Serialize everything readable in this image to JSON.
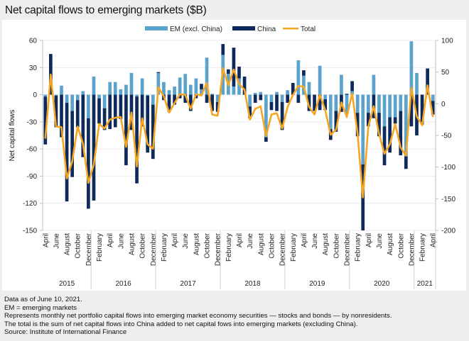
{
  "title": "Net capital flows to emerging markets ($B)",
  "colors": {
    "em": "#5ba3cc",
    "china": "#0e2a5c",
    "total": "#f5a623",
    "grid": "#ebebeb",
    "axis": "#bfbfbf"
  },
  "footer": [
    "Data as of June 10, 2021.",
    "EM = emerging markets",
    "Represents monthly net portfolio capital flows into emerging market economy securities — stocks and bonds — by nonresidents.",
    "The total is the sum of net capital flows into China added to net capital fows into emerging markets (excluding China).",
    "Source: Institute of International Finance"
  ],
  "chart_data": {
    "type": "bar",
    "stacked": true,
    "title": "Net capital flows to emerging markets ($B)",
    "ylabel": "Net capital flows",
    "xlabel": "",
    "ylim": [
      -150,
      60
    ],
    "yticks": [
      60,
      30,
      0,
      -30,
      -60,
      -90,
      -120,
      -150
    ],
    "y2lim": [
      -200,
      100
    ],
    "y2ticks": [
      100,
      50,
      0,
      -50,
      -100,
      -150,
      -200
    ],
    "grid": true,
    "legend": {
      "placement": "top-center",
      "entries": [
        "EM (excl. China)",
        "China",
        "Total"
      ]
    },
    "month_labels_shown": [
      "April",
      "June",
      "August",
      "October",
      "December",
      "February"
    ],
    "years": [
      {
        "label": "2015",
        "start": 0,
        "end": 8
      },
      {
        "label": "2016",
        "start": 9,
        "end": 20
      },
      {
        "label": "2017",
        "start": 21,
        "end": 32
      },
      {
        "label": "2018",
        "start": 33,
        "end": 44
      },
      {
        "label": "2019",
        "start": 45,
        "end": 56
      },
      {
        "label": "2020",
        "start": 57,
        "end": 68
      },
      {
        "label": "2021",
        "start": 69,
        "end": 72
      }
    ],
    "categories": [
      "Apr 2015",
      "May 2015",
      "Jun 2015",
      "Jul 2015",
      "Aug 2015",
      "Sep 2015",
      "Oct 2015",
      "Nov 2015",
      "Dec 2015",
      "Jan 2016",
      "Feb 2016",
      "Mar 2016",
      "Apr 2016",
      "May 2016",
      "Jun 2016",
      "Jul 2016",
      "Aug 2016",
      "Sep 2016",
      "Oct 2016",
      "Nov 2016",
      "Dec 2016",
      "Jan 2017",
      "Feb 2017",
      "Mar 2017",
      "Apr 2017",
      "May 2017",
      "Jun 2017",
      "Jul 2017",
      "Aug 2017",
      "Sep 2017",
      "Oct 2017",
      "Nov 2017",
      "Dec 2017",
      "Jan 2018",
      "Feb 2018",
      "Mar 2018",
      "Apr 2018",
      "May 2018",
      "Jun 2018",
      "Jul 2018",
      "Aug 2018",
      "Sep 2018",
      "Oct 2018",
      "Nov 2018",
      "Dec 2018",
      "Jan 2019",
      "Feb 2019",
      "Mar 2019",
      "Apr 2019",
      "May 2019",
      "Jun 2019",
      "Jul 2019",
      "Aug 2019",
      "Sep 2019",
      "Oct 2019",
      "Nov 2019",
      "Dec 2019",
      "Jan 2020",
      "Feb 2020",
      "Mar 2020",
      "Apr 2020",
      "May 2020",
      "Jun 2020",
      "Jul 2020",
      "Aug 2020",
      "Sep 2020",
      "Oct 2020",
      "Nov 2020",
      "Dec 2020",
      "Jan 2021",
      "Feb 2021",
      "Mar 2021",
      "Apr 2021"
    ],
    "series": [
      {
        "name": "EM (excl. China)",
        "axis": "left",
        "values": [
          -2,
          0,
          -1,
          10,
          -9,
          -18,
          -6,
          4,
          -26,
          20,
          -4,
          -15,
          14,
          14,
          6,
          11,
          24,
          -2,
          18,
          -1,
          -11,
          24,
          14,
          5,
          9,
          19,
          23,
          11,
          18,
          6,
          41,
          1,
          -8,
          44,
          23,
          9,
          18,
          0,
          -13,
          2,
          3,
          -47,
          -8,
          3,
          -8,
          5,
          0,
          38,
          21,
          14,
          0,
          32,
          -5,
          -38,
          -18,
          22,
          -21,
          4,
          -20,
          -77,
          -20,
          22,
          -20,
          -35,
          -25,
          -25,
          -18,
          -68,
          59,
          24,
          0,
          0,
          -7
        ]
      },
      {
        "name": "China",
        "axis": "left",
        "values": [
          -53,
          45,
          -35,
          -47,
          -109,
          -73,
          -30,
          -69,
          -100,
          -117,
          -28,
          -24,
          -38,
          -36,
          -27,
          -78,
          -39,
          -96,
          -35,
          -63,
          -60,
          1,
          -6,
          -19,
          -11,
          -4,
          -9,
          -18,
          -4,
          6,
          -9,
          -18,
          -11,
          12,
          5,
          43,
          13,
          20,
          -13,
          -9,
          -6,
          -5,
          -9,
          -18,
          -31,
          -9,
          13,
          -9,
          6,
          -18,
          -18,
          -17,
          -12,
          -12,
          -23,
          -19,
          1,
          11,
          -26,
          -73,
          -15,
          -26,
          -26,
          -43,
          -39,
          -7,
          -49,
          -14,
          -35,
          -45,
          -33,
          29,
          -15
        ]
      },
      {
        "name": "Total",
        "axis": "right",
        "type": "line",
        "values": [
          -55,
          46,
          -36,
          -37,
          -118,
          -91,
          -36,
          -63,
          -125,
          -96,
          -32,
          -39,
          -25,
          -22,
          -21,
          -68,
          -14,
          -99,
          -23,
          -64,
          -71,
          26,
          12,
          -14,
          1,
          15,
          14,
          -8,
          15,
          13,
          33,
          -17,
          -19,
          56,
          29,
          54,
          31,
          22,
          -25,
          -8,
          -4,
          -51,
          -17,
          -15,
          -39,
          -5,
          14,
          28,
          27,
          -5,
          -17,
          14,
          -10,
          -49,
          -41,
          2,
          -21,
          16,
          -47,
          -148,
          -36,
          -4,
          -48,
          -79,
          -64,
          -32,
          -69,
          -82,
          25,
          -20,
          -34,
          29,
          -21
        ]
      }
    ]
  }
}
